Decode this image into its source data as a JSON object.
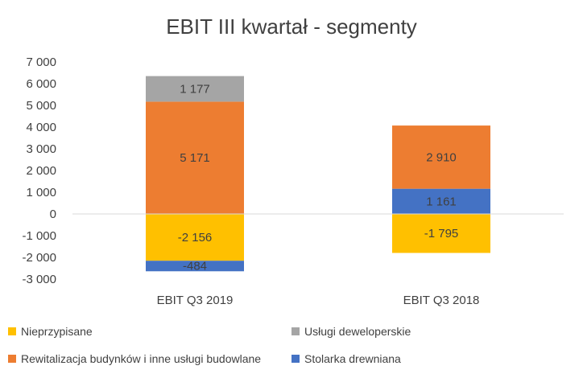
{
  "chart_data": {
    "type": "bar",
    "stacked": true,
    "title": "EBIT III kwartał - segmenty",
    "categories": [
      "EBIT Q3 2019",
      "EBIT Q3 2018"
    ],
    "ylim": [
      -3000,
      7000
    ],
    "yticks": [
      7000,
      6000,
      5000,
      4000,
      3000,
      2000,
      1000,
      0,
      -1000,
      -2000,
      -3000
    ],
    "ytick_labels": [
      "7 000",
      "6 000",
      "5 000",
      "4 000",
      "3 000",
      "2 000",
      "1 000",
      "0",
      "-1 000",
      "-2 000",
      "-3 000"
    ],
    "grid": false,
    "legend_position": "bottom",
    "series": [
      {
        "name": "Nieprzypisane",
        "color": "#FFC000",
        "values": [
          -2156,
          -1795
        ],
        "labels": [
          "-2 156",
          "-1 795"
        ]
      },
      {
        "name": "Stolarka drewniana",
        "color": "#4472C4",
        "values": [
          -484,
          1161
        ],
        "labels": [
          "-484",
          "1 161"
        ]
      },
      {
        "name": "Rewitalizacja budynków i inne usługi budowlane",
        "color": "#ED7D31",
        "values": [
          5171,
          2910
        ],
        "labels": [
          "5 171",
          "2 910"
        ]
      },
      {
        "name": "Usługi deweloperskie",
        "color": "#A5A5A5",
        "values": [
          1177,
          0
        ],
        "labels": [
          "1 177",
          ""
        ]
      }
    ],
    "legend": [
      {
        "name": "Nieprzypisane",
        "color": "#FFC000"
      },
      {
        "name": "Usługi deweloperskie",
        "color": "#A5A5A5"
      },
      {
        "name": "Rewitalizacja budynków i inne usługi budowlane",
        "color": "#ED7D31"
      },
      {
        "name": "Stolarka drewniana",
        "color": "#4472C4"
      }
    ]
  }
}
